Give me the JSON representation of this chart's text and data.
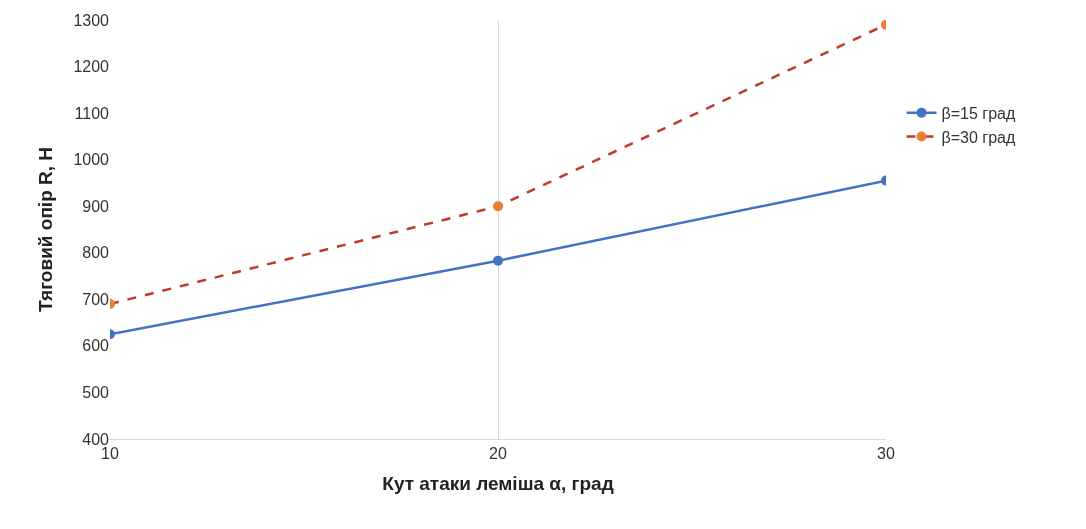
{
  "chart_data": {
    "type": "line",
    "xlabel": "Кут атаки леміша α, град",
    "ylabel": "Тяговий опір R, Н",
    "x": [
      10,
      20,
      30
    ],
    "series": [
      {
        "name": "β=15 град",
        "color": "#4472c4",
        "values": [
          625,
          783,
          955
        ],
        "line_style": "solid"
      },
      {
        "name": "β=30 град",
        "color": "#c0392b",
        "colors": [
          "#ed7d31",
          "#ed7d31",
          "#ed7d31"
        ],
        "values": [
          690,
          900,
          1290
        ],
        "line_style": "dashed"
      }
    ],
    "xlim": [
      10,
      30
    ],
    "xticks": [
      10,
      20,
      30
    ],
    "ylim": [
      400,
      1300
    ],
    "yticks": [
      400,
      500,
      600,
      700,
      800,
      900,
      1000,
      1100,
      1200,
      1300
    ],
    "grid": "x",
    "legend": "right",
    "marker": "circle"
  }
}
